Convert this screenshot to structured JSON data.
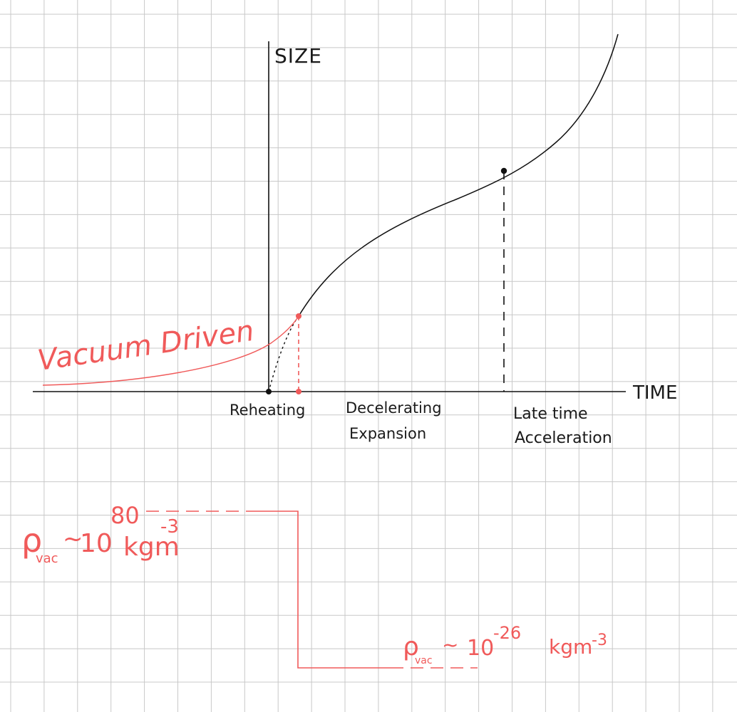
{
  "axes": {
    "y_label": "SIZE",
    "x_label": "TIME"
  },
  "phases": {
    "reheating": "Reheating",
    "decelerating": [
      "Decelerating",
      "Expansion"
    ],
    "late_time": [
      "Late time",
      "Acceleration"
    ]
  },
  "annotations": {
    "vacuum_driven": "Vacuum Driven"
  },
  "density_levels": {
    "early": {
      "symbol": "ρ",
      "subscript": "vac",
      "approx": "~",
      "base": "10",
      "exponent": "80",
      "unit": "kgm",
      "unit_exponent": "-3"
    },
    "late": {
      "symbol": "ρ",
      "subscript": "vac",
      "approx": "~",
      "base": "10",
      "exponent": "-26",
      "unit": "kgm",
      "unit_exponent": "-3"
    }
  },
  "colors": {
    "grid": "#c8c8c8",
    "ink": "#111111",
    "red": "#f05a5a"
  }
}
